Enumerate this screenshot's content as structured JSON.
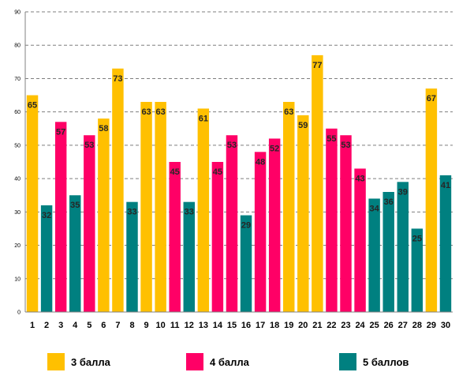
{
  "chart_data": {
    "type": "bar",
    "title": "",
    "xlabel": "",
    "ylabel": "",
    "ylim": [
      0,
      90
    ],
    "yticks": [
      0,
      10,
      20,
      30,
      40,
      50,
      60,
      70,
      80,
      90
    ],
    "grid": true,
    "legend_position": "bottom",
    "categories": [
      "1",
      "2",
      "3",
      "4",
      "5",
      "6",
      "7",
      "8",
      "9",
      "10",
      "11",
      "12",
      "13",
      "14",
      "15",
      "16",
      "17",
      "18",
      "19",
      "20",
      "21",
      "22",
      "23",
      "24",
      "25",
      "26",
      "27",
      "28",
      "29",
      "30"
    ],
    "values": [
      65,
      32,
      57,
      35,
      53,
      58,
      73,
      33,
      63,
      63,
      45,
      33,
      61,
      45,
      53,
      29,
      48,
      52,
      63,
      59,
      77,
      55,
      53,
      43,
      34,
      36,
      39,
      25,
      67,
      41
    ],
    "groups": [
      "g3",
      "g5",
      "g4",
      "g5",
      "g4",
      "g3",
      "g3",
      "g5",
      "g3",
      "g3",
      "g4",
      "g5",
      "g3",
      "g4",
      "g4",
      "g5",
      "g4",
      "g4",
      "g3",
      "g3",
      "g3",
      "g4",
      "g4",
      "g4",
      "g5",
      "g5",
      "g5",
      "g5",
      "g3",
      "g5"
    ],
    "series": [
      {
        "key": "g3",
        "name": "3 балла",
        "color": "#FFC000"
      },
      {
        "key": "g4",
        "name": "4 балла",
        "color": "#FF0066"
      },
      {
        "key": "g5",
        "name": "5 баллов",
        "color": "#008080"
      }
    ]
  }
}
